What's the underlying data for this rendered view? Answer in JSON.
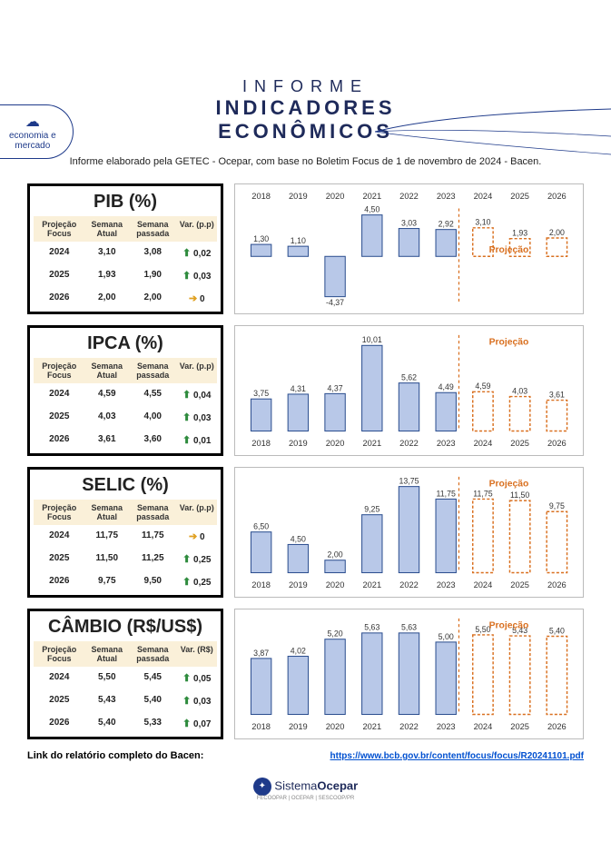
{
  "badge": {
    "icon": "☁",
    "line1": "economia e",
    "line2": "mercado"
  },
  "header": {
    "l1": "INFORME",
    "l2": "INDICADORES",
    "l3": "ECONÔMICOS"
  },
  "subtitle": "Informe elaborado pela GETEC - Ocepar, com base no Boletim Focus de 1 de novembro de 2024 - Bacen.",
  "table_headers": [
    "Projeção\nFocus",
    "Semana\nAtual",
    "Semana\npassada"
  ],
  "projecao_label": "Projeção",
  "colors": {
    "bar_fill": "#b8c8e8",
    "bar_stroke": "#2e5090",
    "proj_stroke": "#d97020",
    "proj_fill": "#fff",
    "text": "#333",
    "divider": "#d97020",
    "neg_bar": "#b8c8e8"
  },
  "sections": [
    {
      "title": "PIB (%)",
      "var_header": "Var. (p.p)",
      "rows": [
        {
          "y": "2024",
          "a": "3,10",
          "p": "3,08",
          "dir": "up",
          "v": "0,02"
        },
        {
          "y": "2025",
          "a": "1,93",
          "p": "1,90",
          "dir": "up",
          "v": "0,03"
        },
        {
          "y": "2026",
          "a": "2,00",
          "p": "2,00",
          "dir": "side",
          "v": "0"
        }
      ],
      "chart": {
        "labels_top": true,
        "years": [
          "2018",
          "2019",
          "2020",
          "2021",
          "2022",
          "2023",
          "2024",
          "2025",
          "2026"
        ],
        "values": [
          1.3,
          1.1,
          -4.37,
          4.5,
          3.03,
          2.92,
          3.1,
          1.93,
          2.0
        ],
        "display": [
          "1,30",
          "1,10",
          "-4,37",
          "4,50",
          "3,03",
          "2,92",
          "3,10",
          "1,93",
          "2,00"
        ],
        "proj_start": 6,
        "ymin": -5,
        "ymax": 5
      }
    },
    {
      "title": "IPCA (%)",
      "var_header": "Var. (p.p)",
      "rows": [
        {
          "y": "2024",
          "a": "4,59",
          "p": "4,55",
          "dir": "up",
          "v": "0,04"
        },
        {
          "y": "2025",
          "a": "4,03",
          "p": "4,00",
          "dir": "up",
          "v": "0,03"
        },
        {
          "y": "2026",
          "a": "3,61",
          "p": "3,60",
          "dir": "up",
          "v": "0,01"
        }
      ],
      "chart": {
        "labels_top": false,
        "years": [
          "2018",
          "2019",
          "2020",
          "2021",
          "2022",
          "2023",
          "2024",
          "2025",
          "2026"
        ],
        "values": [
          3.75,
          4.31,
          4.37,
          10.01,
          5.62,
          4.49,
          4.59,
          4.03,
          3.61
        ],
        "display": [
          "3,75",
          "4,31",
          "4,37",
          "10,01",
          "5,62",
          "4,49",
          "4,59",
          "4,03",
          "3,61"
        ],
        "proj_start": 6,
        "ymin": 0,
        "ymax": 11,
        "proj_label_top": true
      }
    },
    {
      "title": "SELIC (%)",
      "var_header": "Var. (p.p)",
      "rows": [
        {
          "y": "2024",
          "a": "11,75",
          "p": "11,75",
          "dir": "side",
          "v": "0"
        },
        {
          "y": "2025",
          "a": "11,50",
          "p": "11,25",
          "dir": "up",
          "v": "0,25"
        },
        {
          "y": "2026",
          "a": "9,75",
          "p": "9,50",
          "dir": "up",
          "v": "0,25"
        }
      ],
      "chart": {
        "labels_top": false,
        "years": [
          "2018",
          "2019",
          "2020",
          "2021",
          "2022",
          "2023",
          "2024",
          "2025",
          "2026"
        ],
        "values": [
          6.5,
          4.5,
          2.0,
          9.25,
          13.75,
          11.75,
          11.75,
          11.5,
          9.75
        ],
        "display": [
          "6,50",
          "4,50",
          "2,00",
          "9,25",
          "13,75",
          "11,75",
          "11,75",
          "11,50",
          "9,75"
        ],
        "proj_start": 6,
        "ymin": 0,
        "ymax": 15,
        "proj_label_top": true
      }
    },
    {
      "title": "CÂMBIO (R$/US$)",
      "var_header": "Var. (R$)",
      "rows": [
        {
          "y": "2024",
          "a": "5,50",
          "p": "5,45",
          "dir": "up",
          "v": "0,05"
        },
        {
          "y": "2025",
          "a": "5,43",
          "p": "5,40",
          "dir": "up",
          "v": "0,03"
        },
        {
          "y": "2026",
          "a": "5,40",
          "p": "5,33",
          "dir": "up",
          "v": "0,07"
        }
      ],
      "chart": {
        "labels_top": false,
        "years": [
          "2018",
          "2019",
          "2020",
          "2021",
          "2022",
          "2023",
          "2024",
          "2025",
          "2026"
        ],
        "values": [
          3.87,
          4.02,
          5.2,
          5.63,
          5.63,
          5.0,
          5.5,
          5.43,
          5.4
        ],
        "display": [
          "3,87",
          "4,02",
          "5,20",
          "5,63",
          "5,63",
          "5,00",
          "5,50",
          "5,43",
          "5,40"
        ],
        "proj_start": 6,
        "ymin": 0,
        "ymax": 6.5,
        "proj_label_top": true
      }
    }
  ],
  "link_label": "Link do relatório completo do Bacen:",
  "link_url": "https://www.bcb.gov.br/content/focus/focus/R20241101.pdf",
  "footer": {
    "brand1": "Sistema",
    "brand2": "Ocepar",
    "sub": "FECOOPAR | OCEPAR | SESCOOP/PR"
  }
}
